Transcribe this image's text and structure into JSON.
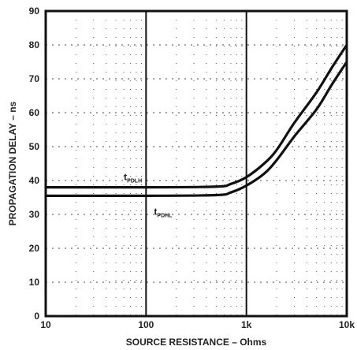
{
  "chart_data": {
    "type": "line",
    "title": "",
    "xlabel": "SOURCE RESISTANCE – Ohms",
    "ylabel": "PROPAGATION DELAY – ns",
    "x_scale": "log",
    "xlim": [
      10,
      10000
    ],
    "ylim": [
      0,
      90
    ],
    "x_ticks": [
      {
        "value": 10,
        "label": "10"
      },
      {
        "value": 100,
        "label": "100"
      },
      {
        "value": 1000,
        "label": "1k"
      },
      {
        "value": 10000,
        "label": "10k"
      }
    ],
    "y_ticks": [
      0,
      10,
      20,
      30,
      40,
      50,
      60,
      70,
      80,
      90
    ],
    "grid": true,
    "series": [
      {
        "name": "tPDLH",
        "label_main": "t",
        "label_sub": "PDLH",
        "x": [
          10,
          100,
          500,
          700,
          1000,
          1500,
          2000,
          3000,
          5000,
          7000,
          10000
        ],
        "y": [
          38,
          38,
          38.2,
          39,
          41,
          45,
          49,
          57,
          66,
          73,
          80
        ]
      },
      {
        "name": "tPDHL",
        "label_main": "t",
        "label_sub": "PDHL",
        "x": [
          10,
          100,
          500,
          700,
          1000,
          1500,
          2000,
          3000,
          5000,
          7000,
          10000
        ],
        "y": [
          35.5,
          35.5,
          35.7,
          36.5,
          38.5,
          42,
          46,
          53,
          61,
          68,
          75
        ]
      }
    ]
  }
}
